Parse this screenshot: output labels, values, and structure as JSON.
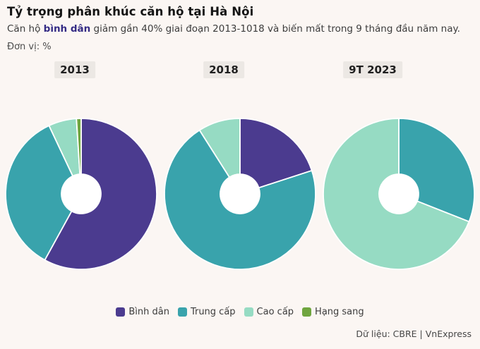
{
  "header": {
    "title": "Tỷ trọng phân khúc căn hộ tại Hà Nội",
    "subtitle_prefix": "Căn hộ ",
    "subtitle_highlight": "bình dân",
    "subtitle_suffix": " giảm gần 40% giai đoạn 2013-1018 và biến mất trong 9 tháng đầu năm nay.",
    "unit_label": "Đơn vị: %"
  },
  "chart_data": {
    "type": "pie",
    "subtype": "donut-small-multiples",
    "title": "Tỷ trọng phân khúc căn hộ tại Hà Nội",
    "unit": "%",
    "categories": [
      "Bình dân",
      "Trung cấp",
      "Cao cấp",
      "Hạng sang"
    ],
    "palette": [
      "#4B3B8F",
      "#39A3AC",
      "#96DBC3",
      "#6FA53F"
    ],
    "legend_position": "bottom",
    "start_angle_deg": 0,
    "direction": "clockwise",
    "charts": [
      {
        "label": "2013",
        "values": [
          58,
          35,
          6,
          1
        ]
      },
      {
        "label": "2018",
        "values": [
          20,
          71,
          9,
          0
        ]
      },
      {
        "label": "9T 2023",
        "values": [
          0,
          31,
          69,
          0
        ]
      }
    ]
  },
  "footer": {
    "source": "Dữ liệu: CBRE | VnExpress"
  }
}
